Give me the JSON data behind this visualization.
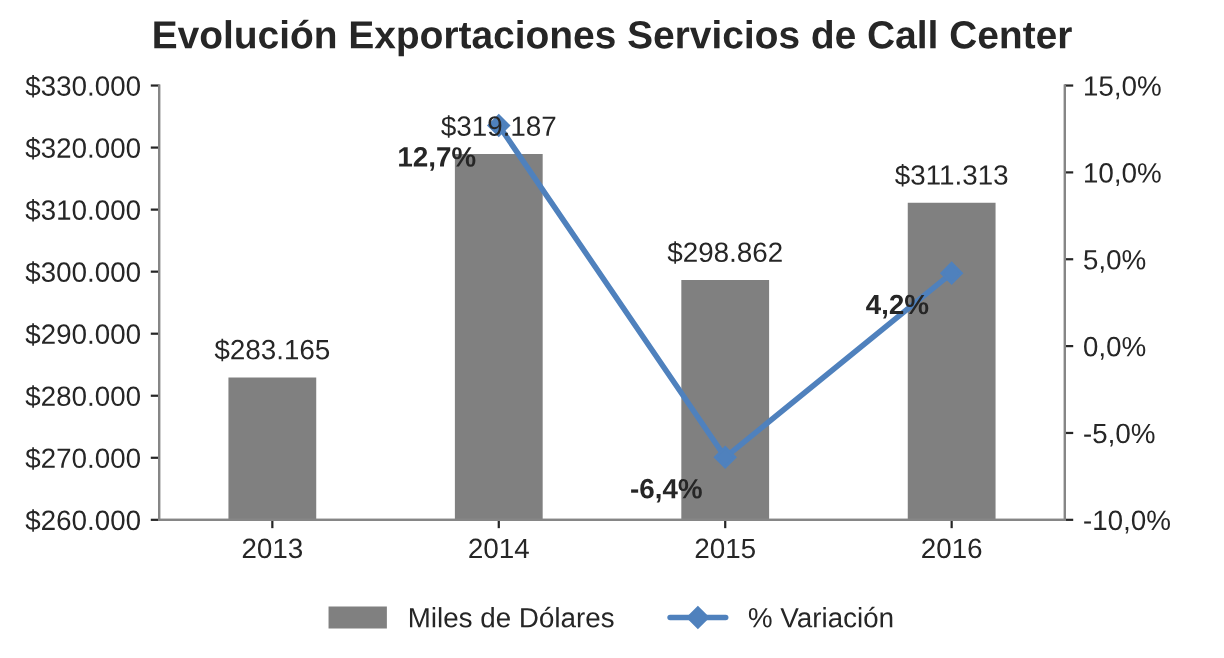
{
  "chart_data": {
    "type": "bar",
    "title": "Evolución Exportaciones Servicios de Call Center",
    "categories": [
      "2013",
      "2014",
      "2015",
      "2016"
    ],
    "series": [
      {
        "name": "Miles de Dólares",
        "color": "#808080",
        "values": [
          283165,
          319187,
          298862,
          311313
        ],
        "value_labels": [
          "$283.165",
          "$319.187",
          "$298.862",
          "$311.313"
        ]
      },
      {
        "name": "% Variación",
        "type": "line",
        "axis": "y2",
        "color": "#4f81bd",
        "marker": "diamond",
        "values": [
          null,
          12.7,
          -6.4,
          4.2
        ],
        "value_labels": [
          null,
          "12,7%",
          "-6,4%",
          "4,2%"
        ]
      }
    ],
    "ylim": [
      260000,
      330000
    ],
    "yticks": [
      {
        "value": 260000,
        "label": "$260.000"
      },
      {
        "value": 270000,
        "label": "$270.000"
      },
      {
        "value": 280000,
        "label": "$280.000"
      },
      {
        "value": 290000,
        "label": "$290.000"
      },
      {
        "value": 300000,
        "label": "$300.000"
      },
      {
        "value": 310000,
        "label": "$310.000"
      },
      {
        "value": 320000,
        "label": "$320.000"
      },
      {
        "value": 330000,
        "label": "$330.000"
      }
    ],
    "y2lim": [
      -10,
      15
    ],
    "y2ticks": [
      {
        "value": -10,
        "label": "-10,0%"
      },
      {
        "value": -5,
        "label": "-5,0%"
      },
      {
        "value": 0,
        "label": "0,0%"
      },
      {
        "value": 5,
        "label": "5,0%"
      },
      {
        "value": 10,
        "label": "10,0%"
      },
      {
        "value": 15,
        "label": "15,0%"
      }
    ],
    "grid": false,
    "legend": "bottom"
  }
}
